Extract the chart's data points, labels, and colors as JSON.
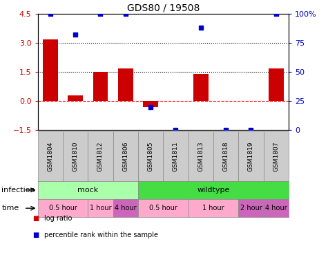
{
  "title": "GDS80 / 19508",
  "samples": [
    "GSM1804",
    "GSM1810",
    "GSM1812",
    "GSM1806",
    "GSM1805",
    "GSM1811",
    "GSM1813",
    "GSM1818",
    "GSM1819",
    "GSM1807"
  ],
  "log_ratio": [
    3.2,
    0.3,
    1.5,
    1.7,
    -0.3,
    0.0,
    1.4,
    0.0,
    0.0,
    1.7
  ],
  "percentile": [
    100,
    82,
    100,
    100,
    20,
    0,
    88,
    0,
    0,
    100
  ],
  "ylim_left": [
    -1.5,
    4.5
  ],
  "ylim_right": [
    0,
    100
  ],
  "yticks_left": [
    -1.5,
    0,
    1.5,
    3,
    4.5
  ],
  "yticks_right": [
    0,
    25,
    50,
    75,
    100
  ],
  "hlines": [
    3.0,
    1.5,
    0.0
  ],
  "hline_styles": [
    "dotted",
    "dotted",
    "dashed"
  ],
  "hline_colors": [
    "black",
    "black",
    "red"
  ],
  "bar_color": "#cc0000",
  "scatter_color": "#0000cc",
  "infection_groups": [
    {
      "label": "mock",
      "start": 0,
      "end": 4,
      "color": "#aaffaa"
    },
    {
      "label": "wildtype",
      "start": 4,
      "end": 10,
      "color": "#44dd44"
    }
  ],
  "time_groups": [
    {
      "label": "0.5 hour",
      "start": 0,
      "end": 2,
      "color": "#ffaacc"
    },
    {
      "label": "1 hour",
      "start": 2,
      "end": 3,
      "color": "#ffaacc"
    },
    {
      "label": "4 hour",
      "start": 3,
      "end": 4,
      "color": "#cc66bb"
    },
    {
      "label": "0.5 hour",
      "start": 4,
      "end": 6,
      "color": "#ffaacc"
    },
    {
      "label": "1 hour",
      "start": 6,
      "end": 8,
      "color": "#ffaacc"
    },
    {
      "label": "2 hour",
      "start": 8,
      "end": 9,
      "color": "#cc66bb"
    },
    {
      "label": "4 hour",
      "start": 9,
      "end": 10,
      "color": "#cc66bb"
    }
  ],
  "tick_label_fontsize": 6.5,
  "axis_label_color_left": "#cc0000",
  "axis_label_color_right": "#0000cc",
  "legend_items": [
    {
      "label": "log ratio",
      "color": "#cc0000"
    },
    {
      "label": "percentile rank within the sample",
      "color": "#0000cc"
    }
  ],
  "infection_label": "infection",
  "time_label": "time",
  "gsm_bg_color": "#cccccc",
  "gsm_border_color": "#888888"
}
